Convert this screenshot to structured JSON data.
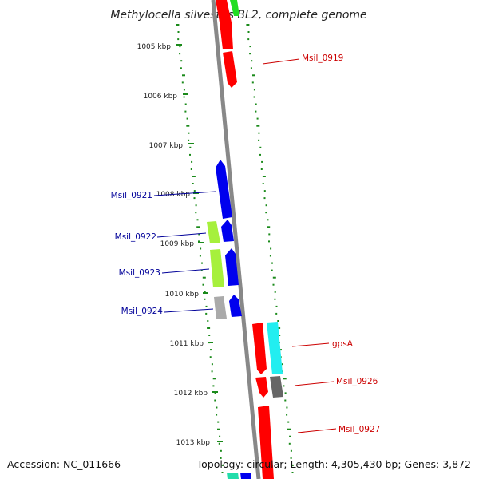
{
  "title": "Methylocella silvestris BL2, complete genome",
  "footer": {
    "accession": "Accession: NC_011666",
    "topology": "Topology: circular; Length: 4,305,430 bp; Genes: 3,872"
  },
  "ticks": [
    "1005 kbp",
    "1006 kbp",
    "1007 kbp",
    "1008 kbp",
    "1009 kbp",
    "1010 kbp",
    "1011 kbp",
    "1012 kbp",
    "1013 kbp"
  ],
  "gene_labels": {
    "left": [
      "Msil_0921",
      "Msil_0922",
      "Msil_0923",
      "Msil_0924"
    ],
    "right": [
      "Msil_0919",
      "gpsA",
      "Msil_0926",
      "Msil_0927"
    ]
  },
  "colors": {
    "red": "#ff0000",
    "blue": "#0000ee",
    "lime": "#a6f03c",
    "cyan": "#22eef0",
    "gray": "#aaaaaa",
    "darkgray": "#666666",
    "label_blue": "#000099",
    "label_red": "#cc0000",
    "dots": "#1a8a1a"
  }
}
